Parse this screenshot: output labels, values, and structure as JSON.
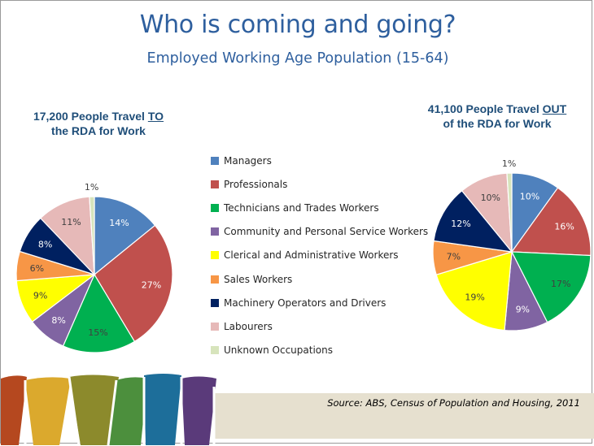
{
  "title": "Who is coming and going?",
  "subtitle": "Employed Working Age Population (15-64)",
  "source": "Source:  ABS, Census of Population and Housing, 2011",
  "chart_data": [
    {
      "type": "pie",
      "title_parts": [
        "17,200 People Travel ",
        "TO",
        "the RDA for Work"
      ],
      "categories": [
        "Managers",
        "Professionals",
        "Technicians and Trades Workers",
        "Community and Personal Service Workers",
        "Clerical and Administrative Workers",
        "Sales Workers",
        "Machinery Operators and Drivers",
        "Labourers",
        "Unknown Occupations"
      ],
      "values": [
        14,
        27,
        15,
        8,
        9,
        6,
        8,
        11,
        1
      ],
      "labels": [
        "14%",
        "27%",
        "15%",
        "8%",
        "9%",
        "6%",
        "8%",
        "11%",
        "1%"
      ],
      "colors": [
        "#4f81bd",
        "#c0504d",
        "#00b050",
        "#8064a2",
        "#ffff00",
        "#f79646",
        "#002060",
        "#e6b9b8",
        "#d7e4bc"
      ]
    },
    {
      "type": "pie",
      "title_parts": [
        "41,100 People Travel ",
        "OUT",
        "of the RDA for Work"
      ],
      "categories": [
        "Managers",
        "Professionals",
        "Technicians and Trades Workers",
        "Community and Personal Service Workers",
        "Clerical and Administrative Workers",
        "Sales Workers",
        "Machinery Operators and Drivers",
        "Labourers",
        "Unknown Occupations"
      ],
      "values": [
        10,
        16,
        17,
        9,
        19,
        7,
        12,
        10,
        1
      ],
      "labels": [
        "10%",
        "16%",
        "17%",
        "9%",
        "19%",
        "7%",
        "12%",
        "10%",
        "1%"
      ],
      "colors": [
        "#4f81bd",
        "#c0504d",
        "#00b050",
        "#8064a2",
        "#ffff00",
        "#f79646",
        "#002060",
        "#e6b9b8",
        "#d7e4bc"
      ]
    }
  ],
  "legend": [
    {
      "label": "Managers",
      "color": "#4f81bd"
    },
    {
      "label": "Professionals",
      "color": "#c0504d"
    },
    {
      "label": "Technicians and Trades Workers",
      "color": "#00b050"
    },
    {
      "label": "Community and Personal Service Workers",
      "color": "#8064a2"
    },
    {
      "label": "Clerical and Administrative Workers",
      "color": "#ffff00"
    },
    {
      "label": "Sales Workers",
      "color": "#f79646"
    },
    {
      "label": "Machinery Operators and Drivers",
      "color": "#002060"
    },
    {
      "label": "Labourers",
      "color": "#e6b9b8"
    },
    {
      "label": "Unknown Occupations",
      "color": "#d7e4bc"
    }
  ],
  "footer_colors": [
    "#b5481f",
    "#dba92d",
    "#8c8a2c",
    "#4c8f3d",
    "#1d6e9a",
    "#5a3a7a",
    "#e6e0cf"
  ]
}
